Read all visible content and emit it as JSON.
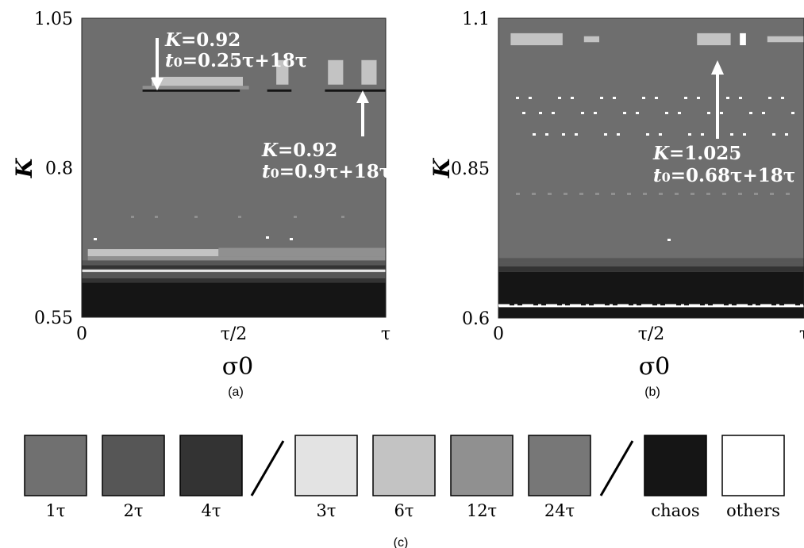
{
  "chart_data": [
    {
      "type": "heatmap",
      "panel": "(a)",
      "xlabel": "σ0",
      "ylabel": "K",
      "xlim": [
        0,
        1
      ],
      "ylim": [
        0.55,
        1.05
      ],
      "x_ticks": [
        {
          "value": 0,
          "label": "0"
        },
        {
          "value": 0.5,
          "label": "τ/2"
        },
        {
          "value": 1,
          "label": "τ"
        }
      ],
      "y_ticks": [
        {
          "value": 0.55,
          "label": "0.55"
        },
        {
          "value": 0.8,
          "label": "0.8"
        },
        {
          "value": 1.05,
          "label": "1.05"
        }
      ],
      "background_class": "1τ",
      "regions": [
        {
          "class": "chaos",
          "x0": 0,
          "x1": 1,
          "y0": 0.55,
          "y1": 0.608
        },
        {
          "class": "4τ",
          "x0": 0,
          "x1": 1,
          "y0": 0.608,
          "y1": 0.615
        },
        {
          "class": "2τ",
          "x0": 0,
          "x1": 1,
          "y0": 0.615,
          "y1": 0.625
        },
        {
          "class": "others",
          "x0": 0,
          "x1": 1,
          "y0": 0.626,
          "y1": 0.629
        },
        {
          "class": "4τ",
          "x0": 0,
          "x1": 1,
          "y0": 0.631,
          "y1": 0.637
        },
        {
          "class": "2τ",
          "x0": 0,
          "x1": 1,
          "y0": 0.637,
          "y1": 0.645
        },
        {
          "class": "12τ",
          "x0": 0.02,
          "x1": 1,
          "y0": 0.645,
          "y1": 0.652
        },
        {
          "class": "6τ",
          "x0": 0.02,
          "x1": 0.45,
          "y0": 0.652,
          "y1": 0.664
        },
        {
          "class": "12τ",
          "x0": 0.45,
          "x1": 1,
          "y0": 0.652,
          "y1": 0.666
        },
        {
          "class": "chaos",
          "x0": 0.2,
          "x1": 0.52,
          "y0": 0.927,
          "y1": 0.931
        },
        {
          "class": "12τ",
          "x0": 0.2,
          "x1": 0.55,
          "y0": 0.931,
          "y1": 0.937
        },
        {
          "class": "6τ",
          "x0": 0.23,
          "x1": 0.53,
          "y0": 0.937,
          "y1": 0.952
        },
        {
          "class": "6τ",
          "x0": 0.64,
          "x1": 0.68,
          "y0": 0.939,
          "y1": 0.98
        },
        {
          "class": "chaos",
          "x0": 0.61,
          "x1": 0.69,
          "y0": 0.927,
          "y1": 0.931
        },
        {
          "class": "6τ",
          "x0": 0.81,
          "x1": 0.86,
          "y0": 0.939,
          "y1": 0.98
        },
        {
          "class": "6τ",
          "x0": 0.92,
          "x1": 0.97,
          "y0": 0.939,
          "y1": 0.98
        },
        {
          "class": "chaos",
          "x0": 0.8,
          "x1": 1,
          "y0": 0.927,
          "y1": 0.931
        }
      ],
      "annotations": [
        {
          "K": "0.92",
          "t0": "0.25τ+18τ",
          "x": 0.25,
          "y": 0.945
        },
        {
          "K": "0.92",
          "t0": "0.9τ+18τ",
          "x": 0.9,
          "y": 0.945
        }
      ]
    },
    {
      "type": "heatmap",
      "panel": "(b)",
      "xlabel": "σ0",
      "ylabel": "K",
      "xlim": [
        0,
        1
      ],
      "ylim": [
        0.6,
        1.1
      ],
      "x_ticks": [
        {
          "value": 0,
          "label": "0"
        },
        {
          "value": 0.5,
          "label": "τ/2"
        },
        {
          "value": 1,
          "label": "τ"
        }
      ],
      "y_ticks": [
        {
          "value": 0.6,
          "label": "0.6"
        },
        {
          "value": 0.85,
          "label": "0.85"
        },
        {
          "value": 1.1,
          "label": "1.1"
        }
      ],
      "background_class": "1τ",
      "regions": [
        {
          "class": "chaos",
          "x0": 0,
          "x1": 1,
          "y0": 0.6,
          "y1": 0.677
        },
        {
          "class": "4τ",
          "x0": 0,
          "x1": 1,
          "y0": 0.677,
          "y1": 0.686
        },
        {
          "class": "2τ",
          "x0": 0,
          "x1": 1,
          "y0": 0.686,
          "y1": 0.693
        },
        {
          "class": "2τ",
          "x0": 0,
          "x1": 1,
          "y0": 0.693,
          "y1": 0.7
        },
        {
          "class": "others",
          "x0": 0,
          "x1": 1,
          "y0": 0.618,
          "y1": 0.621
        },
        {
          "class": "6τ",
          "x0": 0.04,
          "x1": 0.21,
          "y0": 1.055,
          "y1": 1.075
        },
        {
          "class": "6τ",
          "x0": 0.28,
          "x1": 0.33,
          "y0": 1.06,
          "y1": 1.07
        },
        {
          "class": "6τ",
          "x0": 0.65,
          "x1": 0.76,
          "y0": 1.055,
          "y1": 1.075
        },
        {
          "class": "others",
          "x0": 0.79,
          "x1": 0.81,
          "y0": 1.055,
          "y1": 1.075
        },
        {
          "class": "6τ",
          "x0": 0.88,
          "x1": 1,
          "y0": 1.06,
          "y1": 1.07
        }
      ],
      "annotations": [
        {
          "K": "1.025",
          "t0": "0.68τ+18τ",
          "x": 0.73,
          "y": 1.065
        }
      ]
    }
  ],
  "captions": {
    "a": "(a)",
    "b": "(b)",
    "c": "(c)"
  },
  "legend": [
    {
      "label": "1τ",
      "color": "#707070"
    },
    {
      "label": "2τ",
      "color": "#565656"
    },
    {
      "label": "4τ",
      "color": "#333333"
    },
    {
      "label": "3τ",
      "color": "#e3e3e3"
    },
    {
      "label": "6τ",
      "color": "#c3c3c3"
    },
    {
      "label": "12τ",
      "color": "#909090"
    },
    {
      "label": "24τ",
      "color": "#777777"
    },
    {
      "label": "chaos",
      "color": "#151515"
    },
    {
      "label": "others",
      "color": "#ffffff"
    }
  ],
  "class_colors": {
    "1τ": "#6e6e6e",
    "2τ": "#565656",
    "4τ": "#333333",
    "3τ": "#e3e3e3",
    "6τ": "#c3c3c3",
    "12τ": "#909090",
    "24τ": "#777777",
    "chaos": "#151515",
    "others": "#ffffff"
  }
}
